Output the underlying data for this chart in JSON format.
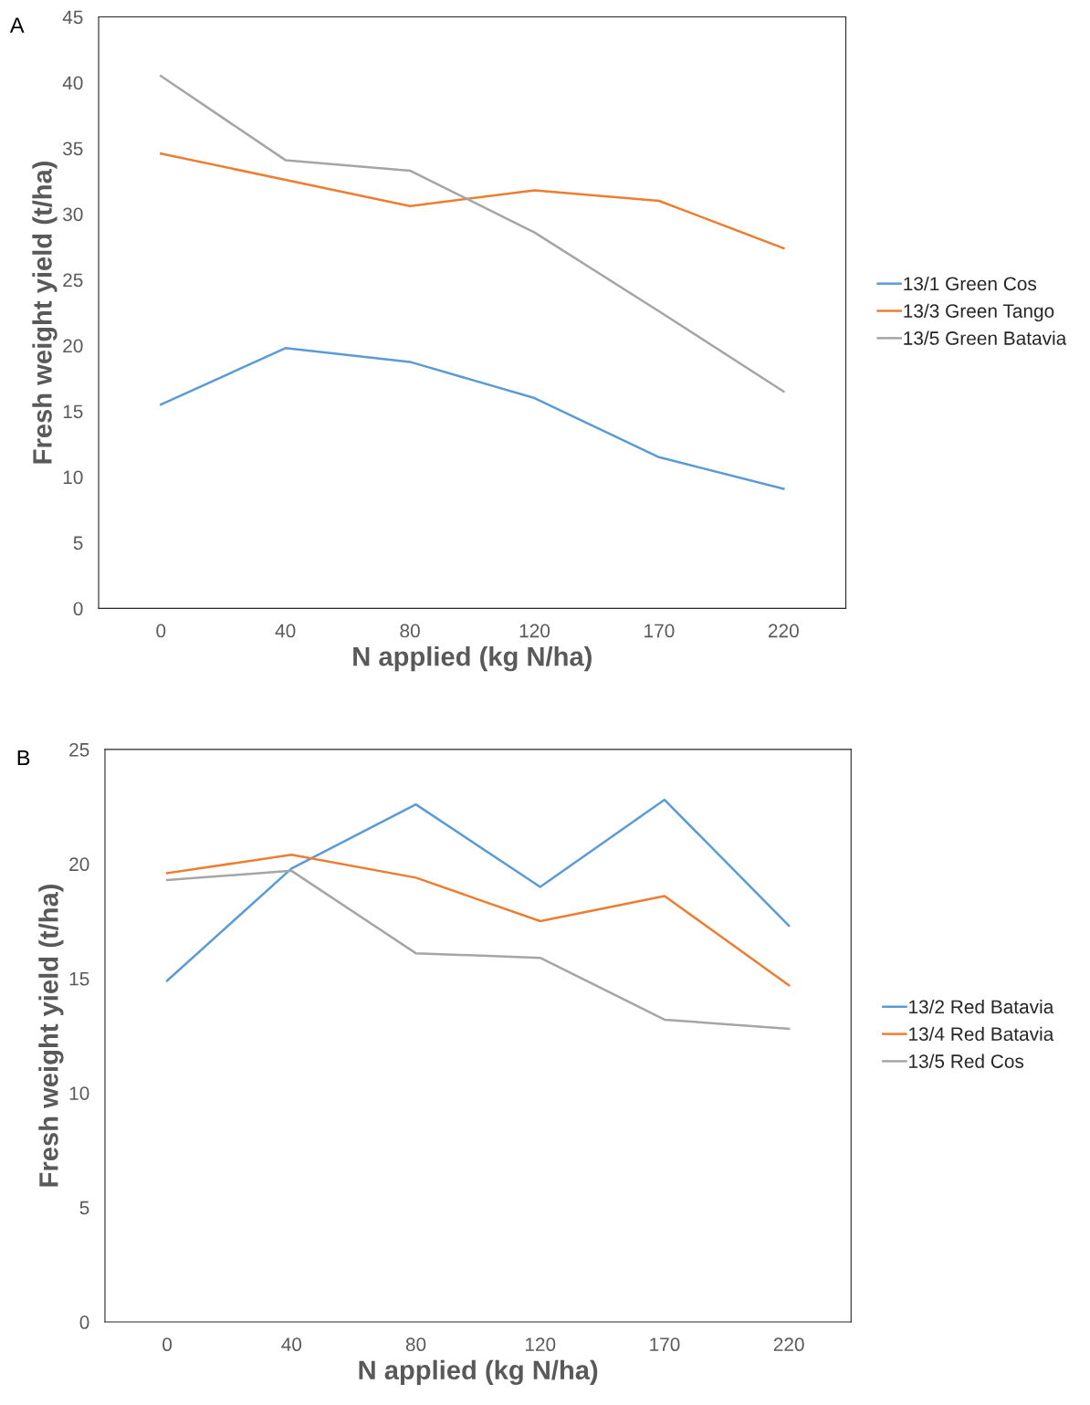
{
  "chart_data": [
    {
      "type": "line",
      "annotations": [
        "A"
      ],
      "xlabel": "N applied (kg N/ha)",
      "ylabel": "Fresh weight yield (t/ha)",
      "categories": [
        "0",
        "40",
        "80",
        "120",
        "170",
        "220"
      ],
      "ylim": [
        0,
        45
      ],
      "yticks": [
        0,
        5,
        10,
        15,
        20,
        25,
        30,
        35,
        40,
        45
      ],
      "grid": false,
      "legend": "right",
      "marker": "none",
      "series": [
        {
          "name": "13/1 Green Cos",
          "color": "#5b9bd5",
          "values": [
            15.5,
            19.8,
            18.75,
            16.0,
            11.5,
            9.1
          ]
        },
        {
          "name": "13/3 Green Tango",
          "color": "#ed7d31",
          "values": [
            34.6,
            32.6,
            30.6,
            31.8,
            31.0,
            27.4
          ]
        },
        {
          "name": "13/5 Green Batavia",
          "color": "#a5a5a5",
          "values": [
            40.5,
            34.1,
            33.3,
            28.6,
            22.6,
            16.5
          ]
        }
      ]
    },
    {
      "type": "line",
      "annotations": [
        "B"
      ],
      "xlabel": "N applied (kg N/ha)",
      "ylabel": "Fresh weight yield (t/ha)",
      "categories": [
        "0",
        "40",
        "80",
        "120",
        "170",
        "220"
      ],
      "ylim": [
        0,
        25
      ],
      "yticks": [
        0,
        5,
        10,
        15,
        20,
        25
      ],
      "grid": false,
      "legend": "right",
      "marker": "none",
      "series": [
        {
          "name": "13/2 Red Batavia",
          "color": "#5b9bd5",
          "values": [
            14.9,
            19.8,
            22.6,
            19.0,
            22.8,
            17.3
          ]
        },
        {
          "name": "13/4 Red Batavia",
          "color": "#ed7d31",
          "values": [
            19.6,
            20.4,
            19.4,
            17.5,
            18.6,
            14.7
          ]
        },
        {
          "name": "13/5 Red Cos",
          "color": "#a5a5a5",
          "values": [
            19.3,
            19.7,
            16.1,
            15.9,
            13.2,
            12.8
          ]
        }
      ]
    }
  ]
}
